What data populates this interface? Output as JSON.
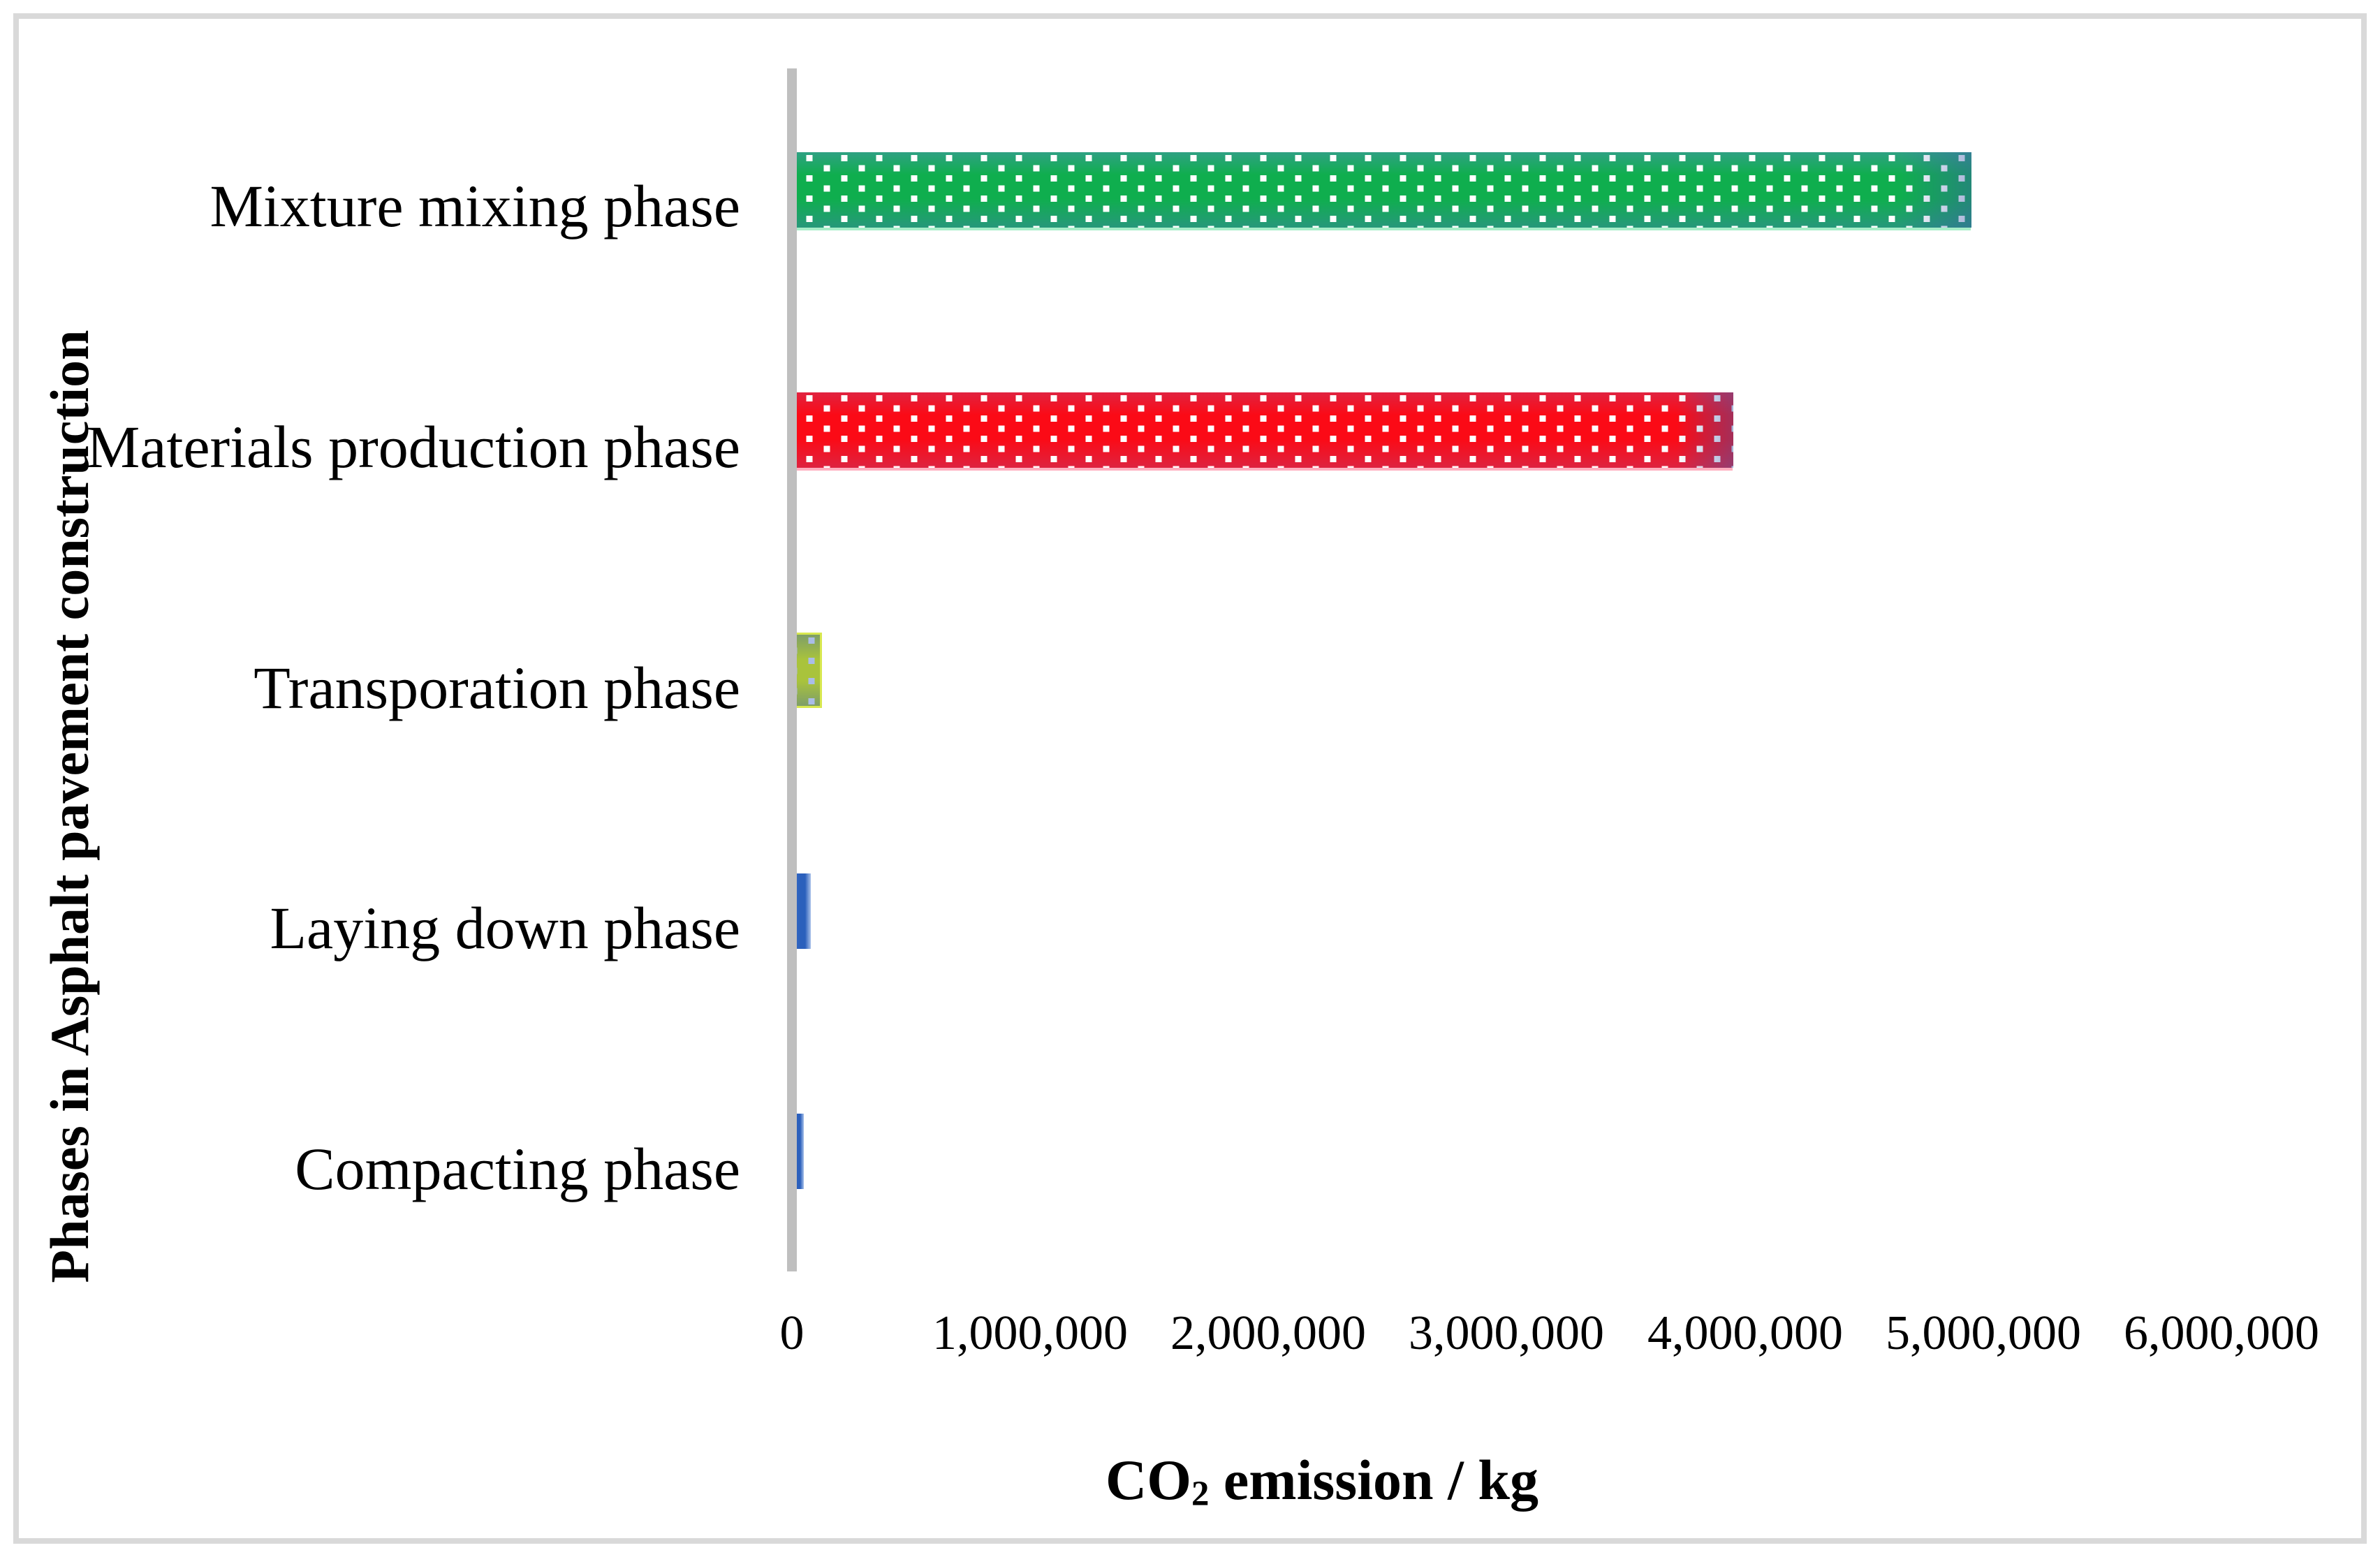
{
  "figure": {
    "background": "#ffffff",
    "border_color": "#d9d9d9",
    "axis_line_color": "#bfbfbf"
  },
  "chart_data": {
    "type": "bar",
    "orientation": "horizontal",
    "title": "",
    "xlabel": "CO2 emission / kg",
    "xlabel_parts": {
      "prefix": "CO",
      "subscript": "2",
      "suffix": " emission / kg"
    },
    "ylabel": "Phases in Asphalt pavement construction",
    "categories": [
      "Mixture mixing phase",
      "Materials production phase",
      "Transporation phase",
      "Laying down phase",
      "Compacting phase"
    ],
    "values": [
      4950000,
      3950000,
      125000,
      80000,
      50000
    ],
    "xlim": [
      0,
      6000000
    ],
    "x_ticks": [
      0,
      1000000,
      2000000,
      3000000,
      4000000,
      5000000,
      6000000
    ],
    "x_tick_labels": [
      "0",
      "1,000,000",
      "2,000,000",
      "3,000,000",
      "4,000,000",
      "5,000,000",
      "6,000,000"
    ],
    "grid": false,
    "legend": null,
    "bar_styles": [
      {
        "fill": "#0fae4e",
        "edge": "#2b9a7d",
        "pattern": "white-dots"
      },
      {
        "fill": "#fa0a17",
        "edge": "#de2340",
        "pattern": "white-dots"
      },
      {
        "fill": "#a9c33c",
        "edge": "#7e9e68",
        "pattern": "blue-dots"
      },
      {
        "fill": "#2d63bd",
        "edge": "#a7c0e9",
        "pattern": "solid"
      },
      {
        "fill": "#2d63bd",
        "edge": "#a7c0e9",
        "pattern": "solid"
      }
    ]
  }
}
